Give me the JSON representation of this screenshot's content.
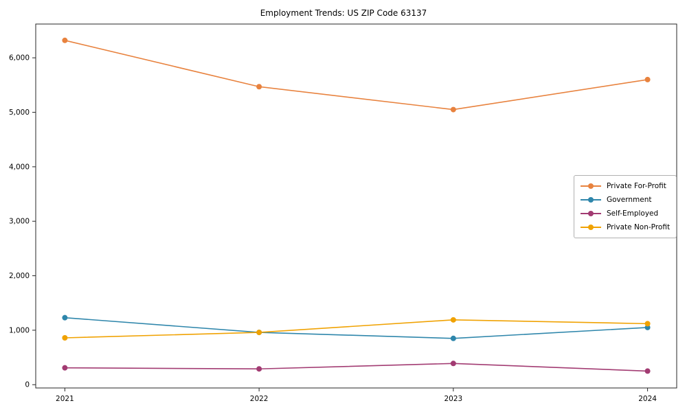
{
  "chart_data": {
    "type": "line",
    "title": "Employment Trends: US ZIP Code 63137",
    "categories": [
      2021,
      2022,
      2023,
      2024
    ],
    "series": [
      {
        "name": "Private For-Profit",
        "color": "#e8823e",
        "values": [
          6320,
          5470,
          5050,
          5600
        ]
      },
      {
        "name": "Government",
        "color": "#2e86ab",
        "values": [
          1230,
          960,
          850,
          1050
        ]
      },
      {
        "name": "Self-Employed",
        "color": "#a23b72",
        "values": [
          310,
          290,
          390,
          250
        ]
      },
      {
        "name": "Private Non-Profit",
        "color": "#f0a202",
        "values": [
          860,
          960,
          1190,
          1120
        ]
      }
    ],
    "xlabel": "",
    "ylabel": "",
    "ylim": [
      -60,
      6620
    ],
    "yticks": [
      0,
      1000,
      2000,
      3000,
      4000,
      5000,
      6000
    ],
    "grid": false,
    "legend_position": "center-right",
    "axis_color": "#262626"
  }
}
